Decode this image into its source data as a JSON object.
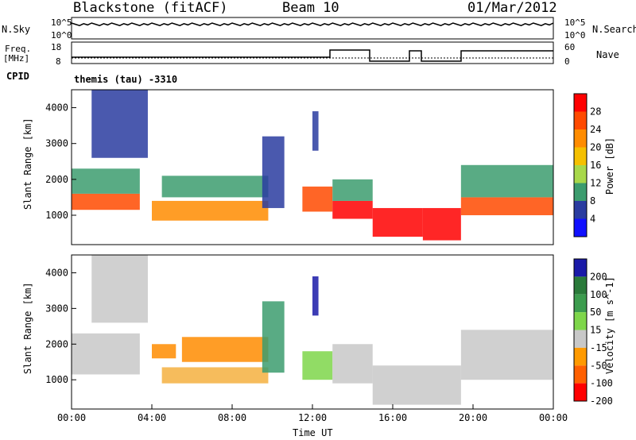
{
  "header": {
    "station": "Blackstone (fitACF)",
    "beam": "Beam 10",
    "date": "01/Mar/2012"
  },
  "top_panels": {
    "nsky_label": "N.Sky",
    "nsky_tick_hi": "10^5",
    "nsky_tick_lo": "10^0",
    "nsearch_label": "N.Search",
    "nsearch_tick_hi": "10^5",
    "nsearch_tick_lo": "10^0",
    "freq_label": "Freq.",
    "freq_unit": "[MHz]",
    "freq_ticks": [
      "18",
      "8"
    ],
    "nave_label": "Nave",
    "nave_ticks": [
      "60",
      "0"
    ],
    "cpid_label": "CPID",
    "cpid_value": "themis (tau) -3310"
  },
  "chart_data": [
    {
      "type": "heatmap",
      "name": "power",
      "ylabel": "Slant Range [km]",
      "xlabel": "Time UT",
      "ylim": [
        180,
        4500
      ],
      "yticks": [
        1000,
        2000,
        3000,
        4000
      ],
      "colorbar_label": "Power [dB]",
      "colorbar_ticks": [
        "28",
        "24",
        "20",
        "16",
        "12",
        "8",
        "4"
      ],
      "colorbar_colors": [
        "#ff0000",
        "#ff4a00",
        "#ff8c00",
        "#f5c000",
        "#a8d84a",
        "#3c9c6e",
        "#2a3ca0",
        "#1010ff"
      ],
      "echo_bands": [
        {
          "t0": 0.0,
          "t1": 3.4,
          "r0": 1150,
          "r1": 1600,
          "color": "#ff4a00"
        },
        {
          "t0": 0.0,
          "t1": 3.4,
          "r0": 1600,
          "r1": 2300,
          "color": "#3c9c6e"
        },
        {
          "t0": 1.0,
          "t1": 3.8,
          "r0": 2600,
          "r1": 4500,
          "color": "#2a3ca0"
        },
        {
          "t0": 4.0,
          "t1": 9.8,
          "r0": 850,
          "r1": 1400,
          "color": "#ff8c00"
        },
        {
          "t0": 4.5,
          "t1": 9.8,
          "r0": 1500,
          "r1": 2100,
          "color": "#3c9c6e"
        },
        {
          "t0": 9.5,
          "t1": 10.6,
          "r0": 1200,
          "r1": 3200,
          "color": "#2a3ca0"
        },
        {
          "t0": 11.5,
          "t1": 13.0,
          "r0": 1100,
          "r1": 1800,
          "color": "#ff4a00"
        },
        {
          "t0": 12.0,
          "t1": 12.3,
          "r0": 2800,
          "r1": 3900,
          "color": "#2a3ca0"
        },
        {
          "t0": 13.0,
          "t1": 15.0,
          "r0": 900,
          "r1": 1400,
          "color": "#ff0000"
        },
        {
          "t0": 13.0,
          "t1": 15.0,
          "r0": 1400,
          "r1": 2000,
          "color": "#3c9c6e"
        },
        {
          "t0": 15.0,
          "t1": 17.5,
          "r0": 400,
          "r1": 1200,
          "color": "#ff0000"
        },
        {
          "t0": 17.5,
          "t1": 19.4,
          "r0": 300,
          "r1": 1200,
          "color": "#ff0000"
        },
        {
          "t0": 19.4,
          "t1": 24.0,
          "r0": 1000,
          "r1": 1500,
          "color": "#ff4a00"
        },
        {
          "t0": 19.4,
          "t1": 24.0,
          "r0": 1500,
          "r1": 2400,
          "color": "#3c9c6e"
        }
      ]
    },
    {
      "type": "heatmap",
      "name": "velocity",
      "ylabel": "Slant Range [km]",
      "xlabel": "Time UT",
      "ylim": [
        180,
        4500
      ],
      "yticks": [
        1000,
        2000,
        3000,
        4000
      ],
      "colorbar_label": "Velocity [m s^-1]",
      "colorbar_ticks": [
        "200",
        "100",
        "50",
        "15",
        "-15",
        "-50",
        "-100",
        "-200"
      ],
      "colorbar_colors": [
        "#1a1aa8",
        "#2a7a3a",
        "#3c9c4e",
        "#7ed64a",
        "#c8c8c8",
        "#ff9a00",
        "#ff6000",
        "#ff0000"
      ],
      "echo_bands": [
        {
          "t0": 0.0,
          "t1": 3.4,
          "r0": 1150,
          "r1": 2300,
          "color": "#c8c8c8"
        },
        {
          "t0": 1.0,
          "t1": 3.8,
          "r0": 2600,
          "r1": 4500,
          "color": "#c8c8c8"
        },
        {
          "t0": 4.0,
          "t1": 5.2,
          "r0": 1600,
          "r1": 2000,
          "color": "#ff8c00"
        },
        {
          "t0": 5.5,
          "t1": 9.8,
          "r0": 1500,
          "r1": 2200,
          "color": "#ff8c00"
        },
        {
          "t0": 4.5,
          "t1": 9.8,
          "r0": 900,
          "r1": 1350,
          "color": "#f5b040"
        },
        {
          "t0": 9.5,
          "t1": 10.6,
          "r0": 1200,
          "r1": 3200,
          "color": "#3c9c6e"
        },
        {
          "t0": 11.5,
          "t1": 13.0,
          "r0": 1000,
          "r1": 1800,
          "color": "#7ed64a"
        },
        {
          "t0": 12.0,
          "t1": 12.3,
          "r0": 2800,
          "r1": 3900,
          "color": "#1a1aa8"
        },
        {
          "t0": 13.0,
          "t1": 15.0,
          "r0": 900,
          "r1": 2000,
          "color": "#c8c8c8"
        },
        {
          "t0": 15.0,
          "t1": 19.4,
          "r0": 300,
          "r1": 1400,
          "color": "#c8c8c8"
        },
        {
          "t0": 19.4,
          "t1": 24.0,
          "r0": 1000,
          "r1": 2400,
          "color": "#c8c8c8"
        }
      ]
    }
  ],
  "x_axis": {
    "ticks": [
      "00:00",
      "04:00",
      "08:00",
      "12:00",
      "16:00",
      "20:00",
      "00:00"
    ],
    "label": "Time UT"
  }
}
